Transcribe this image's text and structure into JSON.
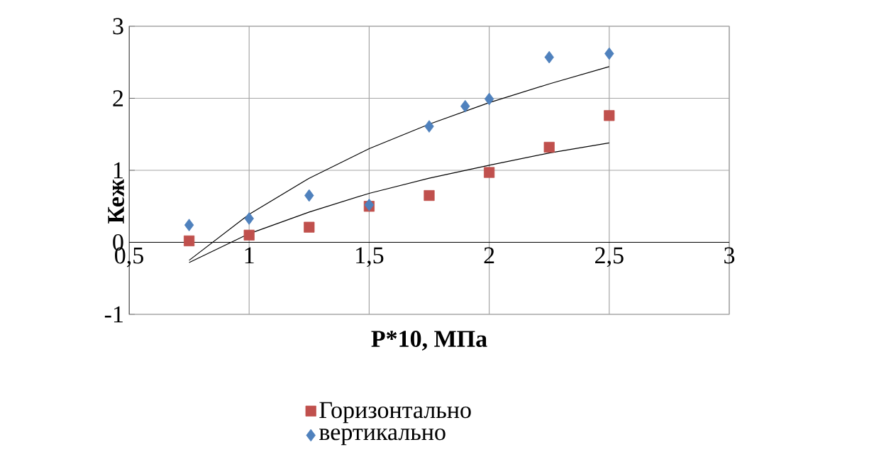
{
  "chart_data": {
    "type": "scatter",
    "xlabel": "P*10,  МПа",
    "ylabel": "Кеж",
    "xlim": [
      0.5,
      3
    ],
    "ylim": [
      -1,
      3
    ],
    "xticks": [
      {
        "value": 0.5,
        "label": "0,5"
      },
      1,
      {
        "value": 1.5,
        "label": "1,5"
      },
      2,
      {
        "value": 2.5,
        "label": "2,5"
      },
      3
    ],
    "yticks": [
      -1,
      0,
      1,
      2,
      3
    ],
    "grid": true,
    "legend": "bottom",
    "series": [
      {
        "name": "Горизонтально",
        "color": "#c0504d",
        "marker": "square",
        "x": [
          0.75,
          1,
          1.25,
          1.5,
          1.75,
          2,
          2.25,
          2.5
        ],
        "values": [
          0.02,
          0.1,
          0.21,
          0.5,
          0.65,
          0.97,
          1.32,
          1.76
        ]
      },
      {
        "name": "вертикально",
        "color": "#4f81bd",
        "marker": "diamond",
        "x": [
          0.75,
          1,
          1.25,
          1.5,
          1.75,
          1.9,
          2,
          2.25,
          2.5
        ],
        "values": [
          0.24,
          0.33,
          0.65,
          0.52,
          1.61,
          1.89,
          1.99,
          2.57,
          2.62
        ]
      },
      {
        "type": "line",
        "color": "#000000",
        "marker": "none",
        "x": [
          0.75,
          1,
          1.25,
          1.5,
          1.75,
          2,
          2.25,
          2.5
        ],
        "values": [
          -0.28,
          0.12,
          0.42,
          0.68,
          0.89,
          1.07,
          1.24,
          1.38
        ]
      },
      {
        "type": "line",
        "color": "#000000",
        "marker": "none",
        "x": [
          0.75,
          1,
          1.25,
          1.5,
          1.75,
          2,
          2.25,
          2.5
        ],
        "values": [
          -0.25,
          0.39,
          0.89,
          1.3,
          1.64,
          1.94,
          2.2,
          2.44
        ]
      }
    ]
  }
}
